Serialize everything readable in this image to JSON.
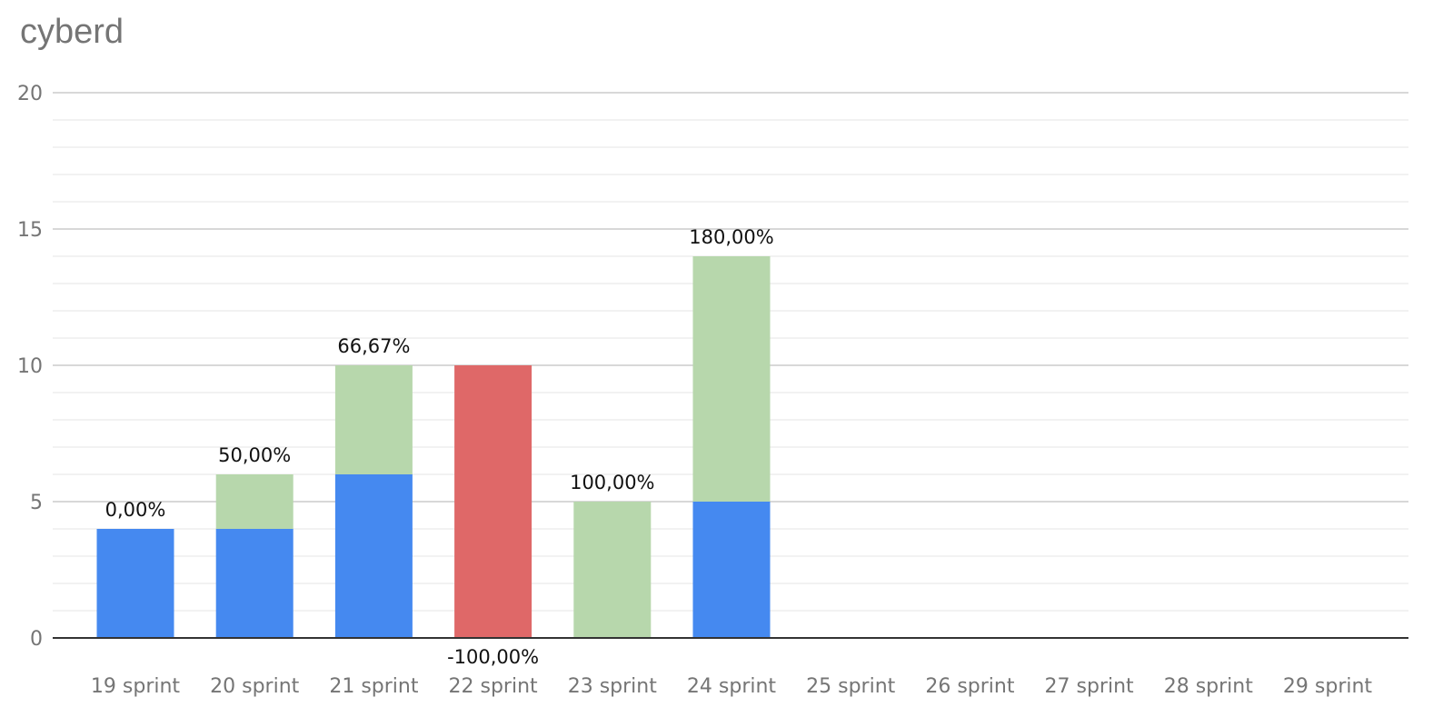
{
  "chart_data": {
    "type": "bar",
    "title": "cyberd",
    "xlabel": "",
    "ylabel": "",
    "ylim": [
      0,
      20
    ],
    "yticks": [
      "0",
      "5",
      "10",
      "15",
      "20"
    ],
    "grid": true,
    "stacked": true,
    "categories": [
      "19 sprint",
      "20 sprint",
      "21 sprint",
      "22 sprint",
      "23 sprint",
      "24 sprint",
      "25 sprint",
      "26 sprint",
      "27 sprint",
      "28 sprint",
      "29 sprint"
    ],
    "series": [
      {
        "color": "#4589f0",
        "values": [
          4,
          4,
          6,
          0,
          0,
          5,
          0,
          0,
          0,
          0,
          0
        ]
      },
      {
        "color": "#b7d7ac",
        "values": [
          0,
          2,
          4,
          0,
          5,
          9,
          0,
          0,
          0,
          0,
          0
        ]
      },
      {
        "color": "#df6868",
        "values": [
          0,
          0,
          0,
          10,
          0,
          0,
          0,
          0,
          0,
          0,
          0
        ]
      }
    ],
    "data_labels": [
      {
        "category": "19 sprint",
        "text": "0,00%",
        "position": "above"
      },
      {
        "category": "20 sprint",
        "text": "50,00%",
        "position": "above"
      },
      {
        "category": "21 sprint",
        "text": "66,67%",
        "position": "above"
      },
      {
        "category": "22 sprint",
        "text": "-100,00%",
        "position": "below"
      },
      {
        "category": "23 sprint",
        "text": "100,00%",
        "position": "above"
      },
      {
        "category": "24 sprint",
        "text": "180,00%",
        "position": "above"
      }
    ]
  }
}
